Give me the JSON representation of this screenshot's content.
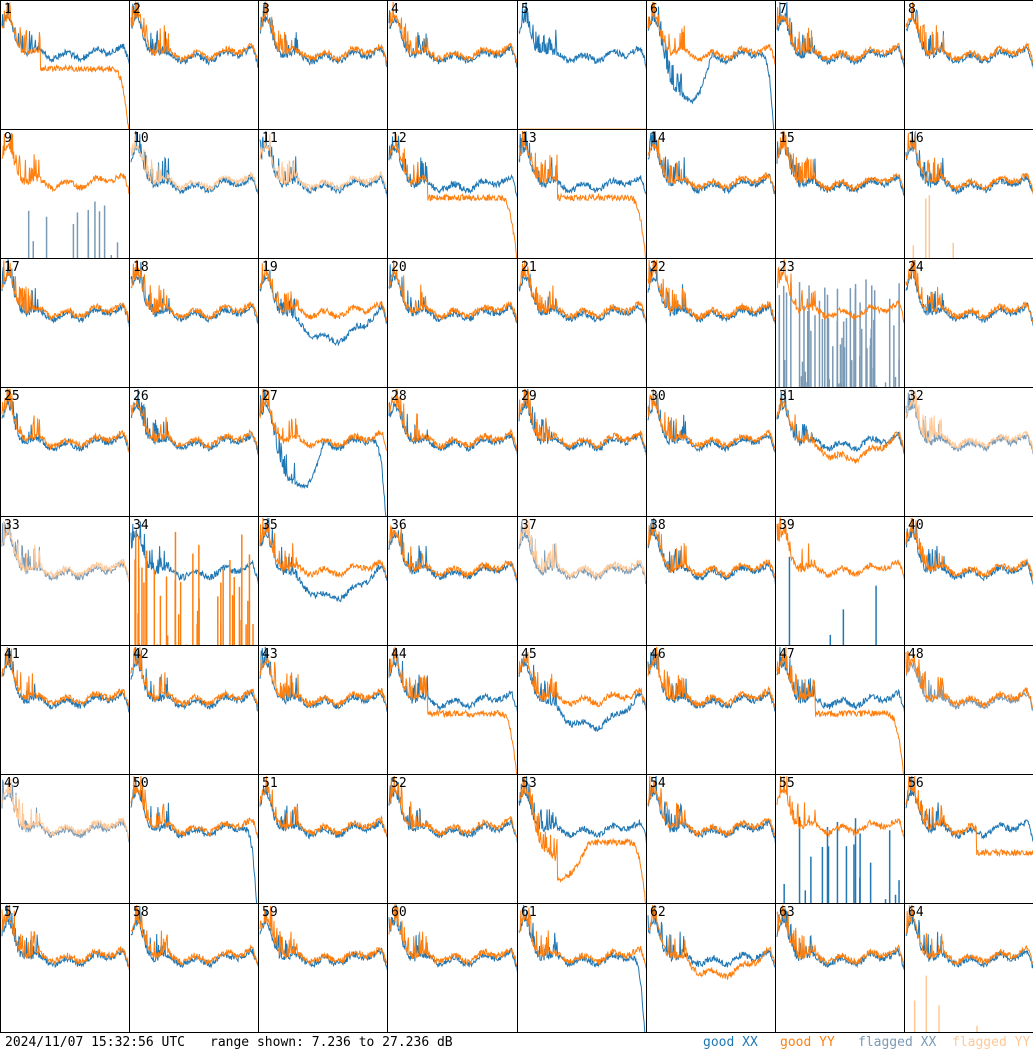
{
  "chart_data": {
    "type": "line",
    "layout": "small-multiples",
    "panels": [
      "1",
      "2",
      "3",
      "4",
      "5",
      "6",
      "7",
      "8",
      "9",
      "10",
      "11",
      "12",
      "13",
      "14",
      "15",
      "16",
      "17",
      "18",
      "19",
      "20",
      "21",
      "22",
      "23",
      "24",
      "25",
      "26",
      "27",
      "28",
      "29",
      "30",
      "31",
      "32",
      "33",
      "34",
      "35",
      "36",
      "37",
      "38",
      "39",
      "40",
      "41",
      "42",
      "43",
      "44",
      "45",
      "46",
      "47",
      "48",
      "49",
      "50",
      "51",
      "52",
      "53",
      "54",
      "55",
      "56",
      "57",
      "58",
      "59",
      "60",
      "61",
      "62",
      "63",
      "64"
    ],
    "ylim_db": [
      7.236,
      27.236
    ],
    "series_colors": {
      "good_xx": "#1f77b4",
      "good_yy": "#ff7f0e",
      "flagged_xx": "#7a9ab5",
      "flagged_yy": "#ffc896"
    }
  },
  "footer": {
    "timestamp": "2024/11/07 15:32:56 UTC",
    "range": "range shown: 7.236 to 27.236 dB",
    "legend": [
      {
        "word": "good",
        "pol": "XX",
        "color": "#1f77b4"
      },
      {
        "word": "good",
        "pol": "YY",
        "color": "#ff7f0e"
      },
      {
        "word": "flagged",
        "pol": "XX",
        "color": "#7a9ab5"
      },
      {
        "word": "flagged",
        "pol": "YY",
        "color": "#ffc896"
      }
    ]
  }
}
